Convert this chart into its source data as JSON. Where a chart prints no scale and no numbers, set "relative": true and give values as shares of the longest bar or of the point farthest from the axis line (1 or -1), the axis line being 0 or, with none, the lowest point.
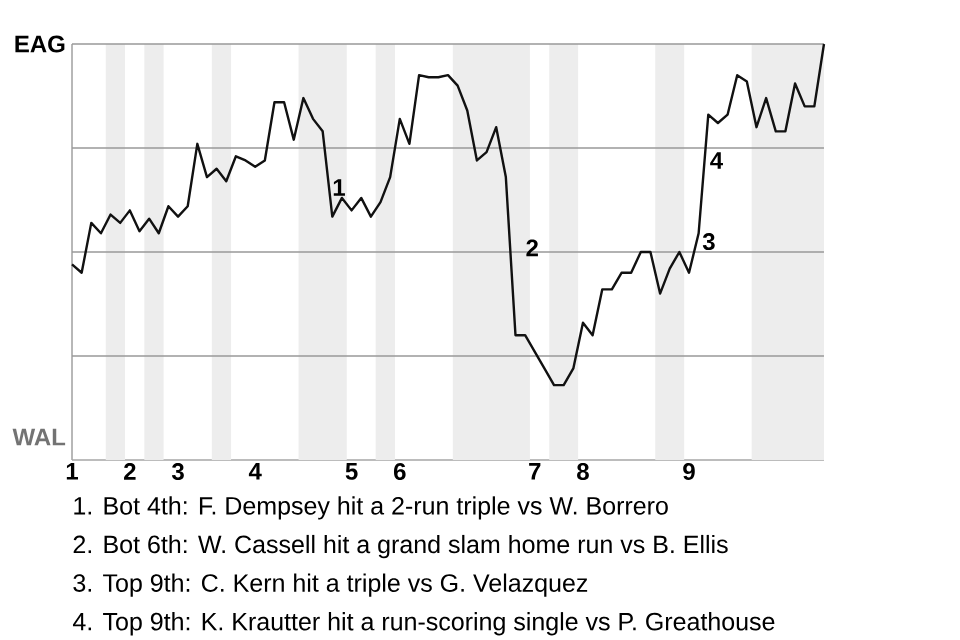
{
  "chart_data": {
    "type": "line",
    "relative": true,
    "categories": [
      "1",
      null,
      null,
      null,
      null,
      null,
      "2",
      null,
      null,
      null,
      null,
      "3",
      null,
      null,
      null,
      null,
      null,
      null,
      null,
      "4",
      null,
      null,
      null,
      null,
      null,
      null,
      null,
      null,
      null,
      "5",
      null,
      null,
      null,
      null,
      "6",
      null,
      null,
      null,
      null,
      null,
      null,
      null,
      null,
      null,
      null,
      null,
      null,
      null,
      "7",
      null,
      null,
      null,
      null,
      "8",
      null,
      null,
      null,
      null,
      null,
      null,
      null,
      null,
      null,
      null,
      "9",
      null,
      null,
      null,
      null,
      null,
      null,
      null,
      null,
      null,
      null,
      null,
      null,
      null,
      null
    ],
    "series": [
      {
        "color": "#111111",
        "values": [
          0.47,
          0.45,
          0.57,
          0.545,
          0.59,
          0.57,
          0.6,
          0.55,
          0.58,
          0.545,
          0.61,
          0.585,
          0.61,
          0.76,
          0.68,
          0.7,
          0.67,
          0.73,
          0.72,
          0.705,
          0.72,
          0.86,
          0.86,
          0.77,
          0.87,
          0.82,
          0.79,
          0.585,
          0.63,
          0.6,
          0.63,
          0.585,
          0.62,
          0.68,
          0.82,
          0.76,
          0.925,
          0.92,
          0.92,
          0.925,
          0.9,
          0.84,
          0.72,
          0.74,
          0.8,
          0.68,
          0.3,
          0.3,
          0.26,
          0.22,
          0.18,
          0.18,
          0.22,
          0.33,
          0.3,
          0.41,
          0.41,
          0.45,
          0.45,
          0.5,
          0.5,
          0.4,
          0.46,
          0.5,
          0.45,
          0.545,
          0.83,
          0.81,
          0.83,
          0.925,
          0.91,
          0.8,
          0.87,
          0.79,
          0.79,
          0.905,
          0.85,
          0.85,
          1
        ]
      }
    ],
    "annotations": [
      "EAG",
      "WAL",
      "1",
      "2",
      "3",
      "4",
      "1. Bot 4th: F. Dempsey hit a 2-run triple vs W. Borrero",
      "2. Bot 6th: W. Cassell hit a grand slam home run vs B. Ellis",
      "3. Top 9th: C. Kern hit a triple vs G. Velazquez",
      "4. Top 9th: K. Krautter hit a run-scoring single vs P. Greathouse"
    ]
  }
}
